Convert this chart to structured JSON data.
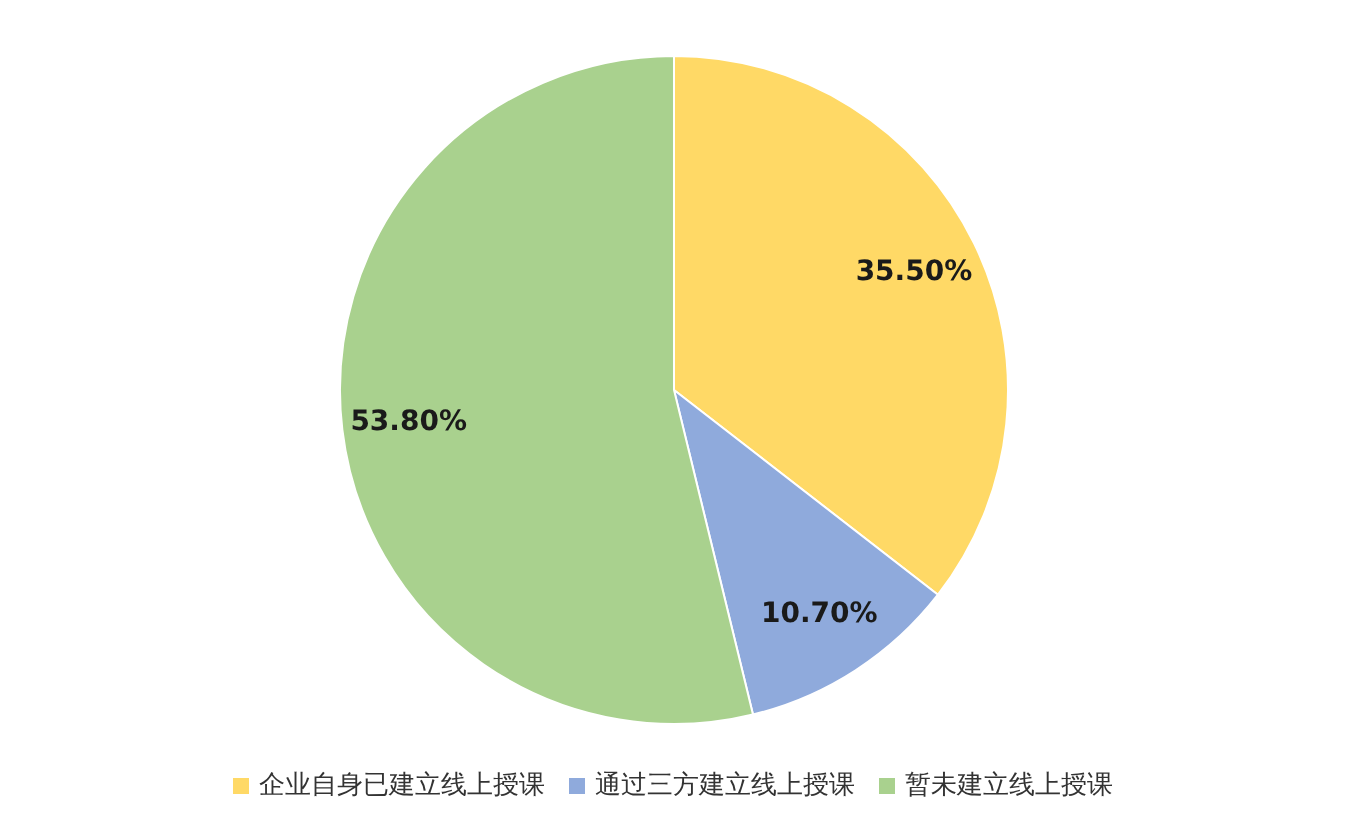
{
  "chart_data": {
    "type": "pie",
    "categories": [
      "企业自身已建立线上授课",
      "通过三方建立线上授课",
      "暂未建立线上授课"
    ],
    "values": [
      35.5,
      10.7,
      53.8
    ],
    "colors": [
      "#ffd966",
      "#8faadc",
      "#a9d18e"
    ],
    "value_labels": [
      "35.50%",
      "10.70%",
      "53.80%"
    ],
    "legend": "bottom"
  }
}
